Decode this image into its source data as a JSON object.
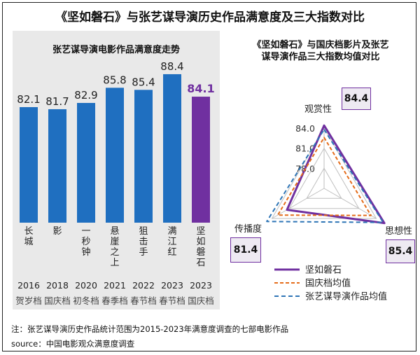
{
  "title": "《坚如磐石》与张艺谋导演历史作品满意度及三大指数对比",
  "note": "注：张艺谋导演历史作品统计范围为2015-2023年满意度调查的七部电影作品",
  "source": "source：中国电影观众满意度调查",
  "colors": {
    "bar": "#1f6fc0",
    "highlight": "#7030a0",
    "national": "#e46c1a",
    "zhang": "#2e75b6"
  },
  "chart_data": [
    {
      "type": "bar",
      "title": "张艺谋导演电影作品满意度走势",
      "categories": [
        "长城",
        "影",
        "一秒钟",
        "悬崖之上",
        "狙击手",
        "满江红",
        "坚如磐石"
      ],
      "values": [
        82.1,
        81.7,
        82.9,
        85.8,
        85.4,
        88.4,
        84.1
      ],
      "value_labels": [
        "82.1",
        "81.7",
        "82.9",
        "85.8",
        "85.4",
        "88.4",
        "84.1"
      ],
      "years": [
        "2016",
        "2018",
        "2020",
        "2021",
        "2022",
        "2023",
        "2023"
      ],
      "seasons": [
        "贺岁档",
        "国庆档",
        "初冬档",
        "春季档",
        "春节档",
        "春节档",
        "国庆档"
      ],
      "highlight_index": 6,
      "ylim": [
        60,
        90
      ]
    },
    {
      "type": "radar",
      "title": "《坚如磐石》与国庆档影片及张艺谋导演作品三大指数均值对比",
      "axes": [
        "观赏性",
        "思想性",
        "传播度"
      ],
      "rlim": [
        75,
        84
      ],
      "ticks": [
        78.0,
        81.0,
        84.0
      ],
      "tick_labels": [
        "78.0",
        "81.0",
        "84.0"
      ],
      "series": [
        {
          "name": "坚如磐石",
          "values": [
            84.4,
            85.4,
            81.4
          ]
        },
        {
          "name": "国庆档均值",
          "values": [
            82.6,
            83.1,
            83.0
          ]
        },
        {
          "name": "张艺谋导演作品均值",
          "values": [
            83.8,
            85.2,
            84.9
          ]
        }
      ],
      "value_boxes": [
        "84.4",
        "85.4",
        "81.4"
      ]
    }
  ]
}
